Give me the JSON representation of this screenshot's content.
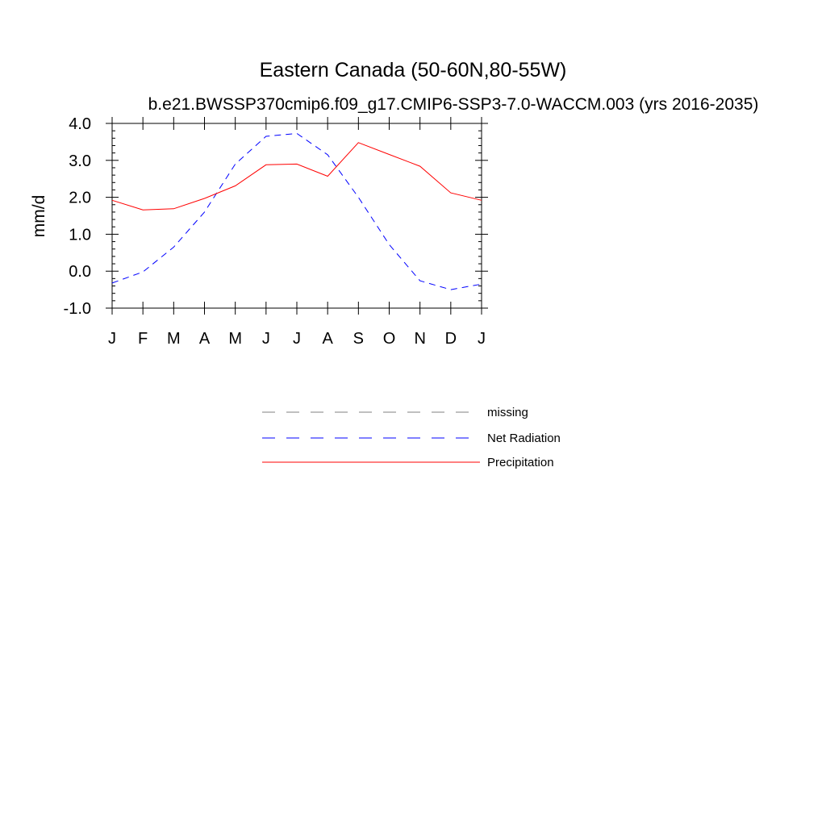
{
  "chart_data": {
    "type": "line",
    "title": "Eastern Canada (50-60N,80-55W)",
    "subtitle": "b.e21.BWSSP370cmip6.f09_g17.CMIP6-SSP3-7.0-WACCM.003 (yrs 2016-2035)",
    "xlabel": "",
    "ylabel": "mm/d",
    "categories": [
      "J",
      "F",
      "M",
      "A",
      "M",
      "J",
      "J",
      "A",
      "S",
      "O",
      "N",
      "D",
      "J"
    ],
    "ylim": [
      -1.0,
      4.0
    ],
    "y_ticks": [
      "4.0",
      "3.0",
      "2.0",
      "1.0",
      "0.0",
      "-1.0"
    ],
    "y_tick_values": [
      4.0,
      3.0,
      2.0,
      1.0,
      0.0,
      -1.0
    ],
    "grid": false,
    "series": [
      {
        "name": "Net Radiation",
        "color": "#0000ff",
        "dashed": true,
        "values": [
          -0.32,
          -0.02,
          0.65,
          1.6,
          2.9,
          3.65,
          3.73,
          3.15,
          2.0,
          0.72,
          -0.26,
          -0.5,
          -0.35
        ]
      },
      {
        "name": "Precipitation",
        "color": "#ff0000",
        "dashed": false,
        "values": [
          1.92,
          1.66,
          1.69,
          1.97,
          2.31,
          2.88,
          2.9,
          2.57,
          3.48,
          3.16,
          2.84,
          2.12,
          1.92
        ]
      }
    ],
    "legend": {
      "placement": "below",
      "entries": [
        {
          "label": "missing",
          "color": "#808080",
          "dashed": true
        },
        {
          "label": "Net Radiation",
          "color": "#0000ff",
          "dashed": true
        },
        {
          "label": "Precipitation",
          "color": "#ff0000",
          "dashed": false
        }
      ]
    }
  }
}
